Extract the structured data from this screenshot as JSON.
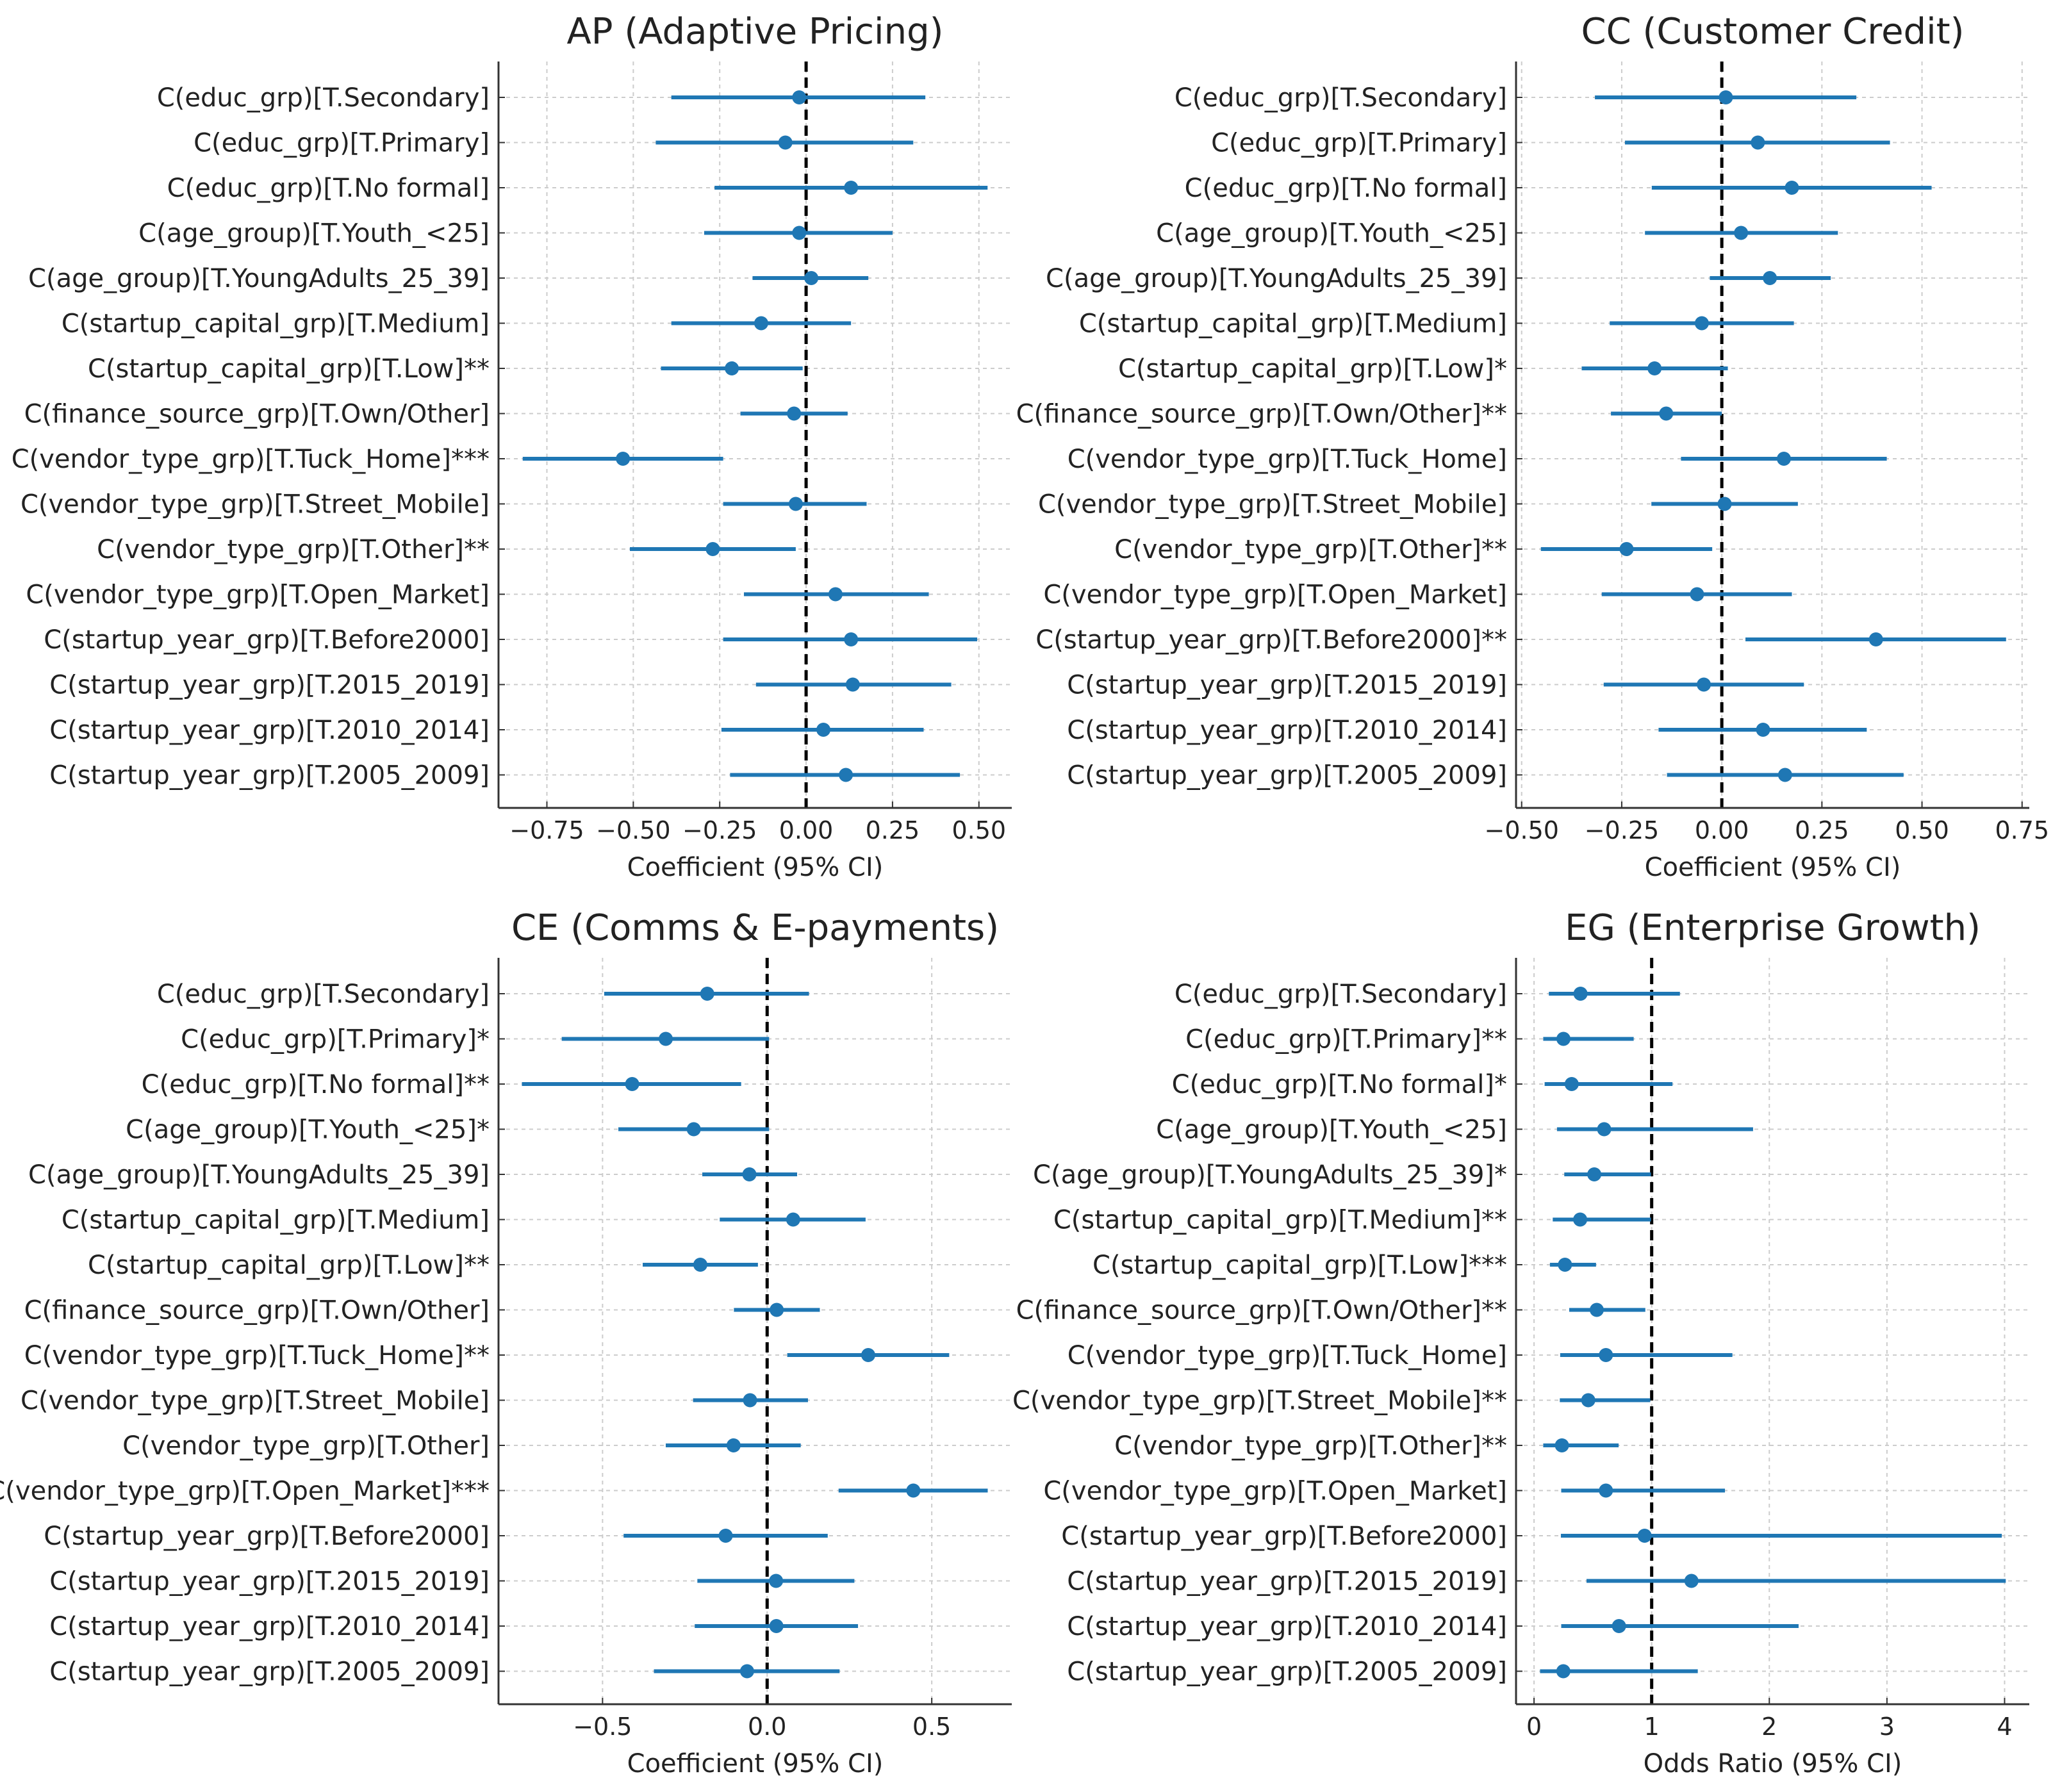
{
  "colors": {
    "marker": "#1f77b4",
    "grid": "#cccccc",
    "axis": "#333333",
    "ref_line": "#000000"
  },
  "chart_data": [
    {
      "type": "forest",
      "title": "AP (Adaptive Pricing)",
      "xlabel": "Coefficient (95% CI)",
      "xlim": [
        -0.89,
        0.595
      ],
      "xticks": [
        -0.75,
        -0.5,
        -0.25,
        0,
        0.25,
        0.5
      ],
      "xtick_labels": [
        "−0.75",
        "−0.50",
        "−0.25",
        "0.00",
        "0.25",
        "0.50"
      ],
      "reference": 0,
      "grid": true,
      "labels": [
        "C(educ_grp)[T.Secondary]",
        "C(educ_grp)[T.Primary]",
        "C(educ_grp)[T.No formal]",
        "C(age_group)[T.Youth_<25]",
        "C(age_group)[T.YoungAdults_25_39]",
        "C(startup_capital_grp)[T.Medium]",
        "C(startup_capital_grp)[T.Low]**",
        "C(finance_source_grp)[T.Own/Other]",
        "C(vendor_type_grp)[T.Tuck_Home]***",
        "C(vendor_type_grp)[T.Street_Mobile]",
        "C(vendor_type_grp)[T.Other]**",
        "C(vendor_type_grp)[T.Open_Market]",
        "C(startup_year_grp)[T.Before2000]",
        "C(startup_year_grp)[T.2015_2019]",
        "C(startup_year_grp)[T.2010_2014]",
        "C(startup_year_grp)[T.2005_2009]"
      ],
      "estimate": [
        -0.02,
        -0.06,
        0.13,
        -0.02,
        0.015,
        -0.13,
        -0.215,
        -0.035,
        -0.53,
        -0.03,
        -0.27,
        0.085,
        0.13,
        0.135,
        0.05,
        0.115
      ],
      "lower": [
        -0.39,
        -0.435,
        -0.265,
        -0.295,
        -0.155,
        -0.39,
        -0.42,
        -0.19,
        -0.82,
        -0.24,
        -0.51,
        -0.18,
        -0.24,
        -0.145,
        -0.245,
        -0.22
      ],
      "upper": [
        0.345,
        0.31,
        0.525,
        0.25,
        0.18,
        0.13,
        -0.01,
        0.12,
        -0.24,
        0.175,
        -0.03,
        0.355,
        0.495,
        0.42,
        0.34,
        0.445
      ]
    },
    {
      "type": "forest",
      "title": "CC (Customer Credit)",
      "xlabel": "Coefficient (95% CI)",
      "xlim": [
        -0.514,
        0.768
      ],
      "xticks": [
        -0.5,
        -0.25,
        0,
        0.25,
        0.5,
        0.75
      ],
      "xtick_labels": [
        "−0.50",
        "−0.25",
        "0.00",
        "0.25",
        "0.50",
        "0.75"
      ],
      "reference": 0,
      "grid": true,
      "labels": [
        "C(educ_grp)[T.Secondary]",
        "C(educ_grp)[T.Primary]",
        "C(educ_grp)[T.No formal]",
        "C(age_group)[T.Youth_<25]",
        "C(age_group)[T.YoungAdults_25_39]",
        "C(startup_capital_grp)[T.Medium]",
        "C(startup_capital_grp)[T.Low]*",
        "C(finance_source_grp)[T.Own/Other]**",
        "C(vendor_type_grp)[T.Tuck_Home]",
        "C(vendor_type_grp)[T.Street_Mobile]",
        "C(vendor_type_grp)[T.Other]**",
        "C(vendor_type_grp)[T.Open_Market]",
        "C(startup_year_grp)[T.Before2000]**",
        "C(startup_year_grp)[T.2015_2019]",
        "C(startup_year_grp)[T.2010_2014]",
        "C(startup_year_grp)[T.2005_2009]"
      ],
      "estimate": [
        0.01,
        0.09,
        0.175,
        0.048,
        0.12,
        -0.05,
        -0.168,
        -0.139,
        0.155,
        0.007,
        -0.238,
        -0.062,
        0.385,
        -0.045,
        0.103,
        0.158
      ],
      "lower": [
        -0.317,
        -0.242,
        -0.175,
        -0.192,
        -0.03,
        -0.28,
        -0.35,
        -0.277,
        -0.102,
        -0.176,
        -0.452,
        -0.3,
        0.059,
        -0.295,
        -0.158,
        -0.137
      ],
      "upper": [
        0.336,
        0.42,
        0.524,
        0.29,
        0.272,
        0.18,
        0.015,
        0.0,
        0.412,
        0.19,
        -0.024,
        0.175,
        0.71,
        0.205,
        0.362,
        0.454
      ]
    },
    {
      "type": "forest",
      "title": "CE (Comms & E-payments)",
      "xlabel": "Coefficient (95% CI)",
      "xlim": [
        -0.816,
        0.743
      ],
      "xticks": [
        -0.5,
        0,
        0.5
      ],
      "xtick_labels": [
        "−0.5",
        "0.0",
        "0.5"
      ],
      "reference": 0,
      "grid": true,
      "labels": [
        "C(educ_grp)[T.Secondary]",
        "C(educ_grp)[T.Primary]*",
        "C(educ_grp)[T.No formal]**",
        "C(age_group)[T.Youth_<25]*",
        "C(age_group)[T.YoungAdults_25_39]",
        "C(startup_capital_grp)[T.Medium]",
        "C(startup_capital_grp)[T.Low]**",
        "C(finance_source_grp)[T.Own/Other]",
        "C(vendor_type_grp)[T.Tuck_Home]**",
        "C(vendor_type_grp)[T.Street_Mobile]",
        "C(vendor_type_grp)[T.Other]",
        "C(vendor_type_grp)[T.Open_Market]***",
        "C(startup_year_grp)[T.Before2000]",
        "C(startup_year_grp)[T.2015_2019]",
        "C(startup_year_grp)[T.2010_2014]",
        "C(startup_year_grp)[T.2005_2009]"
      ],
      "estimate": [
        -0.182,
        -0.308,
        -0.41,
        -0.223,
        -0.054,
        0.079,
        -0.203,
        0.029,
        0.307,
        -0.052,
        -0.102,
        0.444,
        -0.126,
        0.027,
        0.028,
        -0.061
      ],
      "lower": [
        -0.495,
        -0.624,
        -0.745,
        -0.452,
        -0.197,
        -0.144,
        -0.378,
        -0.101,
        0.061,
        -0.225,
        -0.308,
        0.217,
        -0.436,
        -0.212,
        -0.22,
        -0.344
      ],
      "upper": [
        0.127,
        0.006,
        -0.079,
        0.006,
        0.091,
        0.299,
        -0.028,
        0.16,
        0.553,
        0.124,
        0.102,
        0.67,
        0.184,
        0.265,
        0.276,
        0.22
      ]
    },
    {
      "type": "forest",
      "title": "EG (Enterprise Growth)",
      "xlabel": "Odds Ratio (95% CI)",
      "xlim": [
        -0.153,
        4.21
      ],
      "xticks": [
        0,
        1,
        2,
        3,
        4
      ],
      "xtick_labels": [
        "0",
        "1",
        "2",
        "3",
        "4"
      ],
      "reference": 1,
      "grid": true,
      "labels": [
        "C(educ_grp)[T.Secondary]",
        "C(educ_grp)[T.Primary]**",
        "C(educ_grp)[T.No formal]*",
        "C(age_group)[T.Youth_<25]",
        "C(age_group)[T.YoungAdults_25_39]*",
        "C(startup_capital_grp)[T.Medium]**",
        "C(startup_capital_grp)[T.Low]***",
        "C(finance_source_grp)[T.Own/Other]**",
        "C(vendor_type_grp)[T.Tuck_Home]",
        "C(vendor_type_grp)[T.Street_Mobile]**",
        "C(vendor_type_grp)[T.Other]**",
        "C(vendor_type_grp)[T.Open_Market]",
        "C(startup_year_grp)[T.Before2000]",
        "C(startup_year_grp)[T.2015_2019]",
        "C(startup_year_grp)[T.2010_2014]",
        "C(startup_year_grp)[T.2005_2009]"
      ],
      "estimate": [
        0.395,
        0.25,
        0.32,
        0.596,
        0.512,
        0.392,
        0.263,
        0.533,
        0.611,
        0.461,
        0.237,
        0.611,
        0.94,
        1.338,
        0.722,
        0.249
      ],
      "lower": [
        0.126,
        0.078,
        0.09,
        0.195,
        0.257,
        0.159,
        0.135,
        0.299,
        0.222,
        0.219,
        0.078,
        0.231,
        0.228,
        0.446,
        0.231,
        0.051
      ],
      "upper": [
        1.24,
        0.847,
        1.177,
        1.862,
        0.994,
        0.994,
        0.527,
        0.946,
        1.686,
        0.988,
        0.719,
        1.623,
        3.976,
        4.01,
        2.249,
        1.392
      ]
    }
  ]
}
